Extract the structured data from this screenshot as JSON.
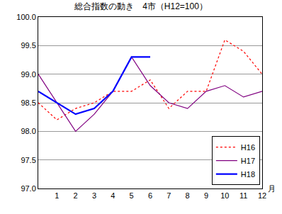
{
  "chart_data": {
    "type": "line",
    "title": "総合指数の動き　4市（H12=100）",
    "x_label": "月",
    "x": [
      0,
      1,
      2,
      3,
      4,
      5,
      6,
      7,
      8,
      9,
      10,
      11,
      12
    ],
    "series": [
      {
        "name": "H16",
        "color": "#ff0000",
        "line_style": "dotted",
        "values": [
          98.5,
          98.2,
          98.4,
          98.5,
          98.7,
          98.7,
          98.9,
          98.4,
          98.7,
          98.7,
          99.6,
          99.4,
          99.0
        ]
      },
      {
        "name": "H17",
        "color": "#800080",
        "line_style": "solid",
        "values": [
          99.0,
          98.5,
          98.0,
          98.3,
          98.7,
          99.3,
          98.8,
          98.5,
          98.4,
          98.7,
          98.8,
          98.6,
          98.7
        ]
      },
      {
        "name": "H18",
        "color": "#0000ff",
        "line_style": "solid",
        "values": [
          98.7,
          98.5,
          98.3,
          98.4,
          98.7,
          99.3,
          99.3,
          null,
          null,
          null,
          null,
          null,
          null
        ]
      }
    ],
    "xlim": [
      0,
      12
    ],
    "xticks": [
      1,
      2,
      3,
      4,
      5,
      6,
      7,
      8,
      9,
      10,
      11,
      12
    ],
    "ylim": [
      97.0,
      100.0
    ],
    "yticks": [
      {
        "value": 97.0,
        "label": "97.0"
      },
      {
        "value": 97.5,
        "label": "97.5"
      },
      {
        "value": 98.0,
        "label": "98.0"
      },
      {
        "value": 98.5,
        "label": "98.5"
      },
      {
        "value": 99.0,
        "label": "99.0"
      },
      {
        "value": 99.5,
        "label": "99.5"
      },
      {
        "value": 100.0,
        "label": "100.0"
      }
    ],
    "grid": true,
    "legend": "bottom right"
  }
}
